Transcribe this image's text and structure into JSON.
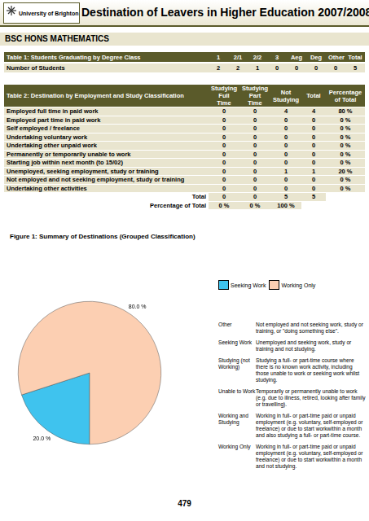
{
  "header": {
    "logo": "University of Brighton",
    "title": "Destination of Leavers in Higher Education 2007/2008",
    "course": "BSC HONS MATHEMATICS"
  },
  "table1": {
    "columns": [
      "Table 1: Students Graduating by Degree Class",
      "1",
      "2/1",
      "2/2",
      "3",
      "Aeg",
      "Deg",
      "Other",
      "Total"
    ],
    "rows": [
      {
        "label": "Number of Students",
        "values": [
          2,
          2,
          1,
          0,
          0,
          0,
          0,
          5
        ]
      }
    ]
  },
  "table2": {
    "columns": [
      "Table 2: Destination by Employment and Study Classification",
      "Studying Full Time",
      "Studying Part Time",
      "Not Studying",
      "Total",
      "Percentage of Total"
    ],
    "rows": [
      {
        "label": "Employed full time in paid work",
        "values": [
          0,
          0,
          4,
          4,
          "80 %"
        ]
      },
      {
        "label": "Employed part time in paid work",
        "values": [
          0,
          0,
          0,
          0,
          "0 %"
        ]
      },
      {
        "label": "Self employed / freelance",
        "values": [
          0,
          0,
          0,
          0,
          "0 %"
        ]
      },
      {
        "label": "Undertaking voluntary work",
        "values": [
          0,
          0,
          0,
          0,
          "0 %"
        ]
      },
      {
        "label": "Undertaking other unpaid work",
        "values": [
          0,
          0,
          0,
          0,
          "0 %"
        ]
      },
      {
        "label": "Permanently or temporarily unable to work",
        "values": [
          0,
          0,
          0,
          0,
          "0 %"
        ]
      },
      {
        "label": "Starting job within next month (to 15/02)",
        "values": [
          0,
          0,
          0,
          0,
          "0 %"
        ]
      },
      {
        "label": "Unemployed, seeking employment, study or training",
        "values": [
          0,
          0,
          1,
          1,
          "20 %"
        ]
      },
      {
        "label": "Not employed and not seeking employment, study or training",
        "values": [
          0,
          0,
          0,
          0,
          "0 %"
        ]
      },
      {
        "label": "Undertaking other activities",
        "values": [
          0,
          0,
          0,
          0,
          "0 %"
        ]
      }
    ],
    "totals": [
      {
        "label": "Total",
        "values": [
          0,
          0,
          5,
          5
        ]
      },
      {
        "label": "Percentage of Total",
        "values": [
          "0 %",
          "0 %",
          "100 %"
        ]
      }
    ]
  },
  "chart_data": {
    "type": "pie",
    "title": "Figure 1: Summary of Destinations (Grouped Classification)",
    "categories": [
      "Seeking Work",
      "Working Only"
    ],
    "values": [
      20,
      80
    ],
    "value_labels": [
      "20.0 %",
      "80.0 %"
    ],
    "colors": [
      "#3fc3ee",
      "#fccfb2"
    ],
    "data_labels": true,
    "legend": "top"
  },
  "definitions": [
    {
      "term": "Other",
      "text": "Not employed and not seeking work, study or training, or \"doing something else\"."
    },
    {
      "term": "Seeking Work",
      "text": "Unemployed and seeking work, study or training and not studying."
    },
    {
      "term": "Studying (not Working)",
      "text": "Studying a full- or part-time course where there is no known work activity, including those unable to  work or seeking work whilst studying."
    },
    {
      "term": "Unable to Work",
      "text": "Temporarily or permanently unable to work (e.g. due to illness, retired, looking after family or travelling)."
    },
    {
      "term": "Working and Studying",
      "text": "Working in full- or part-time paid or unpaid employment (e.g. voluntary, self-employed or freelance) or due to start workwithin a month and also studying a full- or part-time course."
    },
    {
      "term": "Working Only",
      "text": "Working in full- or part-time paid or unpaid employment (e.g. voluntary, self-employed or freelance) or due to start workwithin a month and not studying."
    }
  ],
  "page_number": 479
}
